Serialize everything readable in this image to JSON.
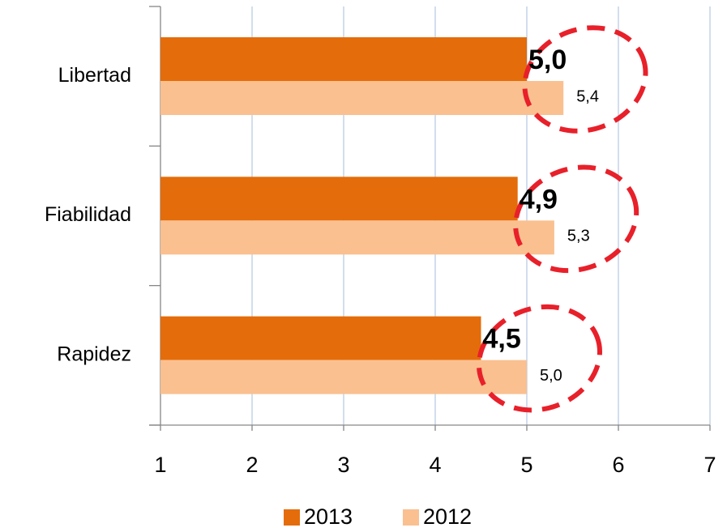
{
  "chart_data": {
    "type": "hbar",
    "categories": [
      "Libertad",
      "Fiabilidad",
      "Rapidez"
    ],
    "series": [
      {
        "name": "2013",
        "color": "#e46c0a",
        "values": [
          5.0,
          4.9,
          4.5
        ],
        "value_labels": [
          "5,0",
          "4,9",
          "4,5"
        ]
      },
      {
        "name": "2012",
        "color": "#fac090",
        "values": [
          5.4,
          5.3,
          5.0
        ],
        "value_labels": [
          "5,4",
          "5,3",
          "5,0"
        ]
      }
    ],
    "xlim": [
      1,
      7
    ],
    "xticks": [
      1,
      2,
      3,
      4,
      5,
      6,
      7
    ],
    "grid": true,
    "legend": "bottom"
  }
}
